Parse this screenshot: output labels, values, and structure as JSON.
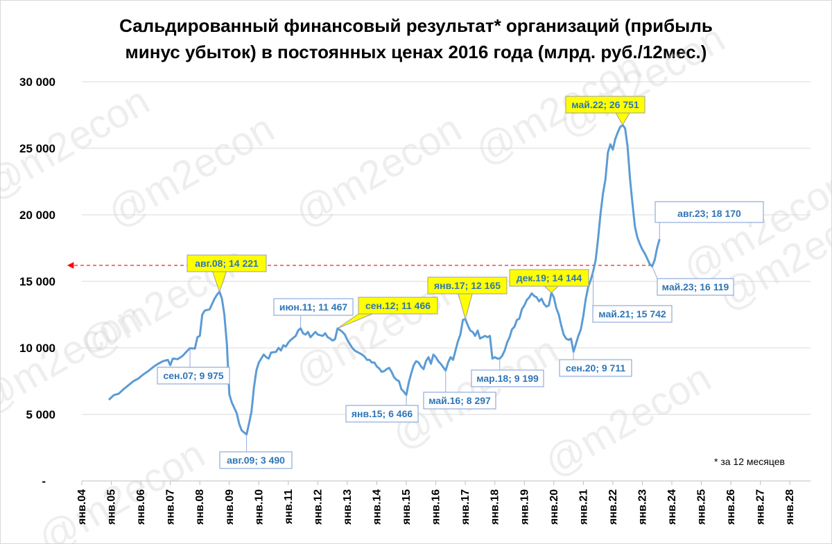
{
  "title": {
    "line1": "Сальдированный финансовый результат* организаций (прибыль",
    "line2": "минус убыток) в постоянных ценах 2016 года (млрд. руб./12мес.)"
  },
  "footnote": "* за 12 месяцев",
  "watermark": "@m2econ",
  "colors": {
    "line": "#5b9bd5",
    "annotation_text": "#2e75b6",
    "highlight_fill": "#ffff00",
    "reference_line": "#ff0000"
  },
  "chart_data": {
    "type": "line",
    "x_start_year": 2004,
    "x_tick_labels": [
      "янв.04",
      "янв.05",
      "янв.06",
      "янв.07",
      "янв.08",
      "янв.09",
      "янв.10",
      "янв.11",
      "янв.12",
      "янв.13",
      "янв.14",
      "янв.15",
      "янв.16",
      "янв.17",
      "янв.18",
      "янв.19",
      "янв.20",
      "янв.21",
      "янв.22",
      "янв.23",
      "янв.24",
      "янв.25",
      "янв.26",
      "янв.27",
      "янв.28"
    ],
    "ylim": [
      0,
      30000
    ],
    "y_ticks": [
      {
        "value": 0,
        "label": "-"
      },
      {
        "value": 5000,
        "label": "5 000"
      },
      {
        "value": 10000,
        "label": "10 000"
      },
      {
        "value": 15000,
        "label": "15 000"
      },
      {
        "value": 20000,
        "label": "20 000"
      },
      {
        "value": 25000,
        "label": "25 000"
      },
      {
        "value": 30000,
        "label": "30 000"
      }
    ],
    "grid": true,
    "reference_line": {
      "value": 16200
    },
    "series": [
      {
        "name": "Сальдированный финансовый результат",
        "points": [
          [
            2004.917,
            6100
          ],
          [
            2005.083,
            6450
          ],
          [
            2005.25,
            6550
          ],
          [
            2005.417,
            6900
          ],
          [
            2005.583,
            7200
          ],
          [
            2005.75,
            7500
          ],
          [
            2005.917,
            7700
          ],
          [
            2006.083,
            8000
          ],
          [
            2006.25,
            8250
          ],
          [
            2006.417,
            8550
          ],
          [
            2006.583,
            8800
          ],
          [
            2006.75,
            9000
          ],
          [
            2006.917,
            9100
          ],
          [
            2007.0,
            8700
          ],
          [
            2007.083,
            9200
          ],
          [
            2007.25,
            9150
          ],
          [
            2007.417,
            9400
          ],
          [
            2007.583,
            9800
          ],
          [
            2007.667,
            9975
          ],
          [
            2007.833,
            9950
          ],
          [
            2007.917,
            10800
          ],
          [
            2008.0,
            10900
          ],
          [
            2008.083,
            12500
          ],
          [
            2008.167,
            12800
          ],
          [
            2008.333,
            12900
          ],
          [
            2008.417,
            13300
          ],
          [
            2008.5,
            13700
          ],
          [
            2008.583,
            14000
          ],
          [
            2008.667,
            14221
          ],
          [
            2008.75,
            13700
          ],
          [
            2008.833,
            12500
          ],
          [
            2008.917,
            10300
          ],
          [
            2009.0,
            6500
          ],
          [
            2009.083,
            5900
          ],
          [
            2009.25,
            5100
          ],
          [
            2009.333,
            4300
          ],
          [
            2009.417,
            3800
          ],
          [
            2009.583,
            3490
          ],
          [
            2009.667,
            4300
          ],
          [
            2009.75,
            5200
          ],
          [
            2009.833,
            7000
          ],
          [
            2009.917,
            8300
          ],
          [
            2010.0,
            8900
          ],
          [
            2010.083,
            9200
          ],
          [
            2010.167,
            9500
          ],
          [
            2010.25,
            9300
          ],
          [
            2010.333,
            9200
          ],
          [
            2010.417,
            9650
          ],
          [
            2010.583,
            9700
          ],
          [
            2010.667,
            10000
          ],
          [
            2010.75,
            9800
          ],
          [
            2010.833,
            10200
          ],
          [
            2010.917,
            10100
          ],
          [
            2011.0,
            10400
          ],
          [
            2011.083,
            10600
          ],
          [
            2011.167,
            10750
          ],
          [
            2011.25,
            10900
          ],
          [
            2011.333,
            11300
          ],
          [
            2011.417,
            11467
          ],
          [
            2011.5,
            11100
          ],
          [
            2011.583,
            11000
          ],
          [
            2011.667,
            11200
          ],
          [
            2011.75,
            10800
          ],
          [
            2011.833,
            11000
          ],
          [
            2011.917,
            11200
          ],
          [
            2012.0,
            11000
          ],
          [
            2012.167,
            10900
          ],
          [
            2012.25,
            11100
          ],
          [
            2012.333,
            10800
          ],
          [
            2012.417,
            10700
          ],
          [
            2012.5,
            10550
          ],
          [
            2012.583,
            10650
          ],
          [
            2012.667,
            11466
          ],
          [
            2012.75,
            11350
          ],
          [
            2012.833,
            11200
          ],
          [
            2012.917,
            11000
          ],
          [
            2013.0,
            10600
          ],
          [
            2013.167,
            10000
          ],
          [
            2013.25,
            9800
          ],
          [
            2013.333,
            9700
          ],
          [
            2013.417,
            9600
          ],
          [
            2013.5,
            9500
          ],
          [
            2013.583,
            9350
          ],
          [
            2013.667,
            9100
          ],
          [
            2013.75,
            9100
          ],
          [
            2013.833,
            8900
          ],
          [
            2013.917,
            8900
          ],
          [
            2014.0,
            8600
          ],
          [
            2014.083,
            8450
          ],
          [
            2014.167,
            8200
          ],
          [
            2014.25,
            8250
          ],
          [
            2014.333,
            8400
          ],
          [
            2014.417,
            8500
          ],
          [
            2014.5,
            8200
          ],
          [
            2014.583,
            7800
          ],
          [
            2014.667,
            7600
          ],
          [
            2014.75,
            7500
          ],
          [
            2014.833,
            6900
          ],
          [
            2014.917,
            6700
          ],
          [
            2015.0,
            6466
          ],
          [
            2015.083,
            7400
          ],
          [
            2015.167,
            8100
          ],
          [
            2015.25,
            8700
          ],
          [
            2015.333,
            9000
          ],
          [
            2015.417,
            8900
          ],
          [
            2015.5,
            8600
          ],
          [
            2015.583,
            8400
          ],
          [
            2015.667,
            9000
          ],
          [
            2015.75,
            9300
          ],
          [
            2015.833,
            8800
          ],
          [
            2015.917,
            9500
          ],
          [
            2016.0,
            9300
          ],
          [
            2016.083,
            9000
          ],
          [
            2016.167,
            8800
          ],
          [
            2016.333,
            8297
          ],
          [
            2016.417,
            8900
          ],
          [
            2016.5,
            9300
          ],
          [
            2016.583,
            9100
          ],
          [
            2016.667,
            9800
          ],
          [
            2016.75,
            10500
          ],
          [
            2016.833,
            11000
          ],
          [
            2016.917,
            12100
          ],
          [
            2017.0,
            12165
          ],
          [
            2017.083,
            11700
          ],
          [
            2017.167,
            11300
          ],
          [
            2017.25,
            11200
          ],
          [
            2017.333,
            10900
          ],
          [
            2017.417,
            11300
          ],
          [
            2017.5,
            10700
          ],
          [
            2017.583,
            10800
          ],
          [
            2017.667,
            10900
          ],
          [
            2017.75,
            10800
          ],
          [
            2017.833,
            10900
          ],
          [
            2017.917,
            9200
          ],
          [
            2018.0,
            9300
          ],
          [
            2018.083,
            9200
          ],
          [
            2018.167,
            9199
          ],
          [
            2018.25,
            9400
          ],
          [
            2018.333,
            9800
          ],
          [
            2018.417,
            10400
          ],
          [
            2018.5,
            10800
          ],
          [
            2018.583,
            11400
          ],
          [
            2018.667,
            11600
          ],
          [
            2018.75,
            12100
          ],
          [
            2018.833,
            12200
          ],
          [
            2018.917,
            12900
          ],
          [
            2019.0,
            13200
          ],
          [
            2019.083,
            13600
          ],
          [
            2019.167,
            13800
          ],
          [
            2019.25,
            14100
          ],
          [
            2019.333,
            13900
          ],
          [
            2019.417,
            13800
          ],
          [
            2019.5,
            13500
          ],
          [
            2019.583,
            13700
          ],
          [
            2019.667,
            13300
          ],
          [
            2019.75,
            13100
          ],
          [
            2019.833,
            13200
          ],
          [
            2019.917,
            14144
          ],
          [
            2020.0,
            13800
          ],
          [
            2020.083,
            13000
          ],
          [
            2020.167,
            12500
          ],
          [
            2020.25,
            11700
          ],
          [
            2020.333,
            11000
          ],
          [
            2020.417,
            10700
          ],
          [
            2020.5,
            10600
          ],
          [
            2020.583,
            10700
          ],
          [
            2020.667,
            9711
          ],
          [
            2020.75,
            10300
          ],
          [
            2020.833,
            10900
          ],
          [
            2020.917,
            11400
          ],
          [
            2021.0,
            12400
          ],
          [
            2021.083,
            13700
          ],
          [
            2021.167,
            14600
          ],
          [
            2021.25,
            15100
          ],
          [
            2021.333,
            15742
          ],
          [
            2021.417,
            16600
          ],
          [
            2021.5,
            18200
          ],
          [
            2021.583,
            20100
          ],
          [
            2021.667,
            21600
          ],
          [
            2021.75,
            22700
          ],
          [
            2021.833,
            24700
          ],
          [
            2021.917,
            25300
          ],
          [
            2022.0,
            24900
          ],
          [
            2022.083,
            25700
          ],
          [
            2022.167,
            26200
          ],
          [
            2022.25,
            26600
          ],
          [
            2022.333,
            26751
          ],
          [
            2022.417,
            26500
          ],
          [
            2022.5,
            25100
          ],
          [
            2022.583,
            22700
          ],
          [
            2022.667,
            20800
          ],
          [
            2022.75,
            19100
          ],
          [
            2022.833,
            18300
          ],
          [
            2022.917,
            17800
          ],
          [
            2023.0,
            17400
          ],
          [
            2023.083,
            17100
          ],
          [
            2023.167,
            16700
          ],
          [
            2023.25,
            16300
          ],
          [
            2023.333,
            16119
          ],
          [
            2023.417,
            16600
          ],
          [
            2023.5,
            17500
          ],
          [
            2023.583,
            18170
          ]
        ]
      }
    ],
    "annotations": [
      {
        "label": "сен.07;  9 975",
        "x": 2007.667,
        "y": 9975,
        "style": "plain"
      },
      {
        "label": "авг.08;  14 221",
        "x": 2008.667,
        "y": 14221,
        "style": "highlight"
      },
      {
        "label": "авг.09;  3 490",
        "x": 2009.583,
        "y": 3490,
        "style": "plain"
      },
      {
        "label": "июн.11;  11 467",
        "x": 2011.417,
        "y": 11467,
        "style": "plain"
      },
      {
        "label": "сен.12;  11 466",
        "x": 2012.667,
        "y": 11466,
        "style": "highlight"
      },
      {
        "label": "янв.15;  6 466",
        "x": 2015.0,
        "y": 6466,
        "style": "plain"
      },
      {
        "label": "май.16;  8 297",
        "x": 2016.333,
        "y": 8297,
        "style": "plain"
      },
      {
        "label": "янв.17;  12 165",
        "x": 2017.0,
        "y": 12165,
        "style": "highlight"
      },
      {
        "label": "мар.18;  9 199",
        "x": 2018.167,
        "y": 9199,
        "style": "plain"
      },
      {
        "label": "дек.19;  14 144",
        "x": 2019.917,
        "y": 14144,
        "style": "highlight"
      },
      {
        "label": "сен.20;  9 711",
        "x": 2020.667,
        "y": 9711,
        "style": "plain"
      },
      {
        "label": "май.21;  15 742",
        "x": 2021.333,
        "y": 15742,
        "style": "plain"
      },
      {
        "label": "май.22;  26 751",
        "x": 2022.333,
        "y": 26751,
        "style": "highlight"
      },
      {
        "label": "май.23;  16 119",
        "x": 2023.333,
        "y": 16119,
        "style": "plain"
      },
      {
        "label": "авг.23;  18 170",
        "x": 2023.583,
        "y": 18170,
        "style": "large"
      }
    ]
  }
}
